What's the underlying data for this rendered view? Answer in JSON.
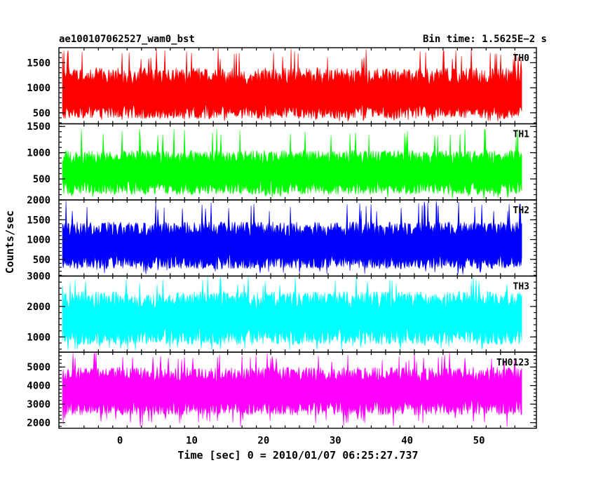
{
  "header": {
    "left": "ae100107062527_wam0_bst",
    "right": "Bin time: 1.5625E−2 s"
  },
  "chart_data": {
    "type": "line",
    "x_start": -8,
    "x_end": 56,
    "xlim": [
      -8.5,
      58
    ],
    "x_ticks": [
      0,
      10,
      20,
      30,
      40,
      50
    ],
    "x_tick_labels": [
      "0",
      "10",
      "20",
      "30",
      "40",
      "50"
    ],
    "xlabel": "Time [sec] 0 = 2010/01/07 06:25:27.737",
    "ylabel": "Counts/sec",
    "series": [
      {
        "name": "TH0",
        "color": "#ff0000",
        "ylim": [
          280,
          1800
        ],
        "y_ticks": [
          500,
          1000,
          1500
        ],
        "y_tick_labels": [
          "500",
          "1000",
          "1500"
        ],
        "band_low": [
          380,
          320
        ],
        "band_high": [
          1400,
          1800
        ],
        "mean": 830
      },
      {
        "name": "TH1",
        "color": "#00ff00",
        "ylim": [
          100,
          1550
        ],
        "y_ticks": [
          500,
          1000,
          1500
        ],
        "y_tick_labels": [
          "500",
          "1000",
          "1500"
        ],
        "band_low": [
          200,
          120
        ],
        "band_high": [
          1050,
          1500
        ],
        "mean": 620
      },
      {
        "name": "TH2",
        "color": "#0000ff",
        "ylim": [
          80,
          2000
        ],
        "y_ticks": [
          500,
          1000,
          1500,
          2000
        ],
        "y_tick_labels": [
          "500",
          "1000",
          "1500",
          "2000"
        ],
        "band_low": [
          260,
          120
        ],
        "band_high": [
          1450,
          2000
        ],
        "mean": 840
      },
      {
        "name": "TH3",
        "color": "#00ffff",
        "ylim": [
          500,
          3000
        ],
        "y_ticks": [
          1000,
          2000,
          3000
        ],
        "y_tick_labels": [
          "1000",
          "2000",
          "3000"
        ],
        "band_low": [
          750,
          550
        ],
        "band_high": [
          2500,
          3000
        ],
        "mean": 1600
      },
      {
        "name": "TH0123",
        "color": "#ff00ff",
        "ylim": [
          1700,
          5800
        ],
        "y_ticks": [
          2000,
          3000,
          4000,
          5000
        ],
        "y_tick_labels": [
          "2000",
          "3000",
          "4000",
          "5000"
        ],
        "band_low": [
          2400,
          1750
        ],
        "band_high": [
          5000,
          5800
        ],
        "mean": 3700
      }
    ]
  }
}
